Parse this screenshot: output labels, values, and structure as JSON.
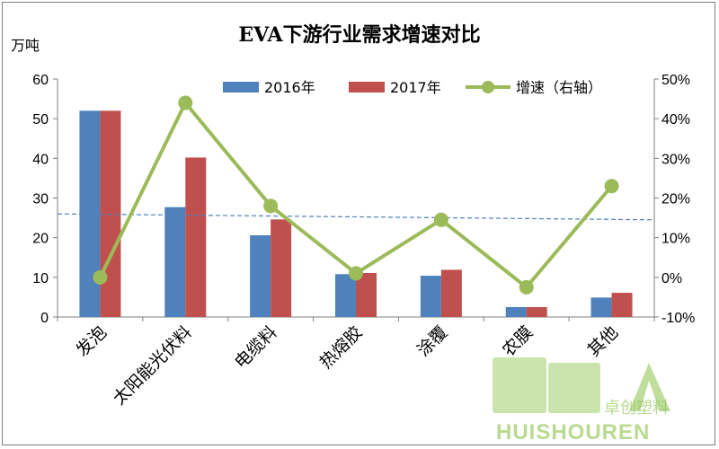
{
  "chart_data": {
    "type": "bar",
    "title": "EVA下游行业需求增速对比",
    "unit_label": "万吨",
    "categories": [
      "发泡",
      "太阳能光伏料",
      "电缆料",
      "热熔胶",
      "涂覆",
      "农膜",
      "其他"
    ],
    "series": [
      {
        "name": "2016年",
        "type": "bar",
        "axis": "left",
        "color": "#4f81bd",
        "values": [
          52,
          27.7,
          20.6,
          10.8,
          10.4,
          2.5,
          4.9
        ]
      },
      {
        "name": "2017年",
        "type": "bar",
        "axis": "left",
        "color": "#c0504d",
        "values": [
          52,
          40.2,
          24.6,
          11.1,
          11.9,
          2.5,
          6.1
        ]
      },
      {
        "name": "增速（右轴）",
        "type": "line",
        "axis": "right",
        "color": "#9bbb59",
        "values": [
          0.0,
          0.44,
          0.18,
          0.01,
          0.145,
          -0.025,
          0.23
        ]
      }
    ],
    "trendline": {
      "color": "#4f81bd",
      "dash": true,
      "start": 0.16,
      "end": 0.145
    },
    "y_left": {
      "min": 0,
      "max": 60,
      "ticks": [
        "0",
        "10",
        "20",
        "30",
        "40",
        "50",
        "60"
      ]
    },
    "y_right": {
      "min": -0.1,
      "max": 0.5,
      "ticks": [
        "-10%",
        "0%",
        "10%",
        "20%",
        "30%",
        "40%",
        "50%"
      ]
    },
    "legend": {
      "position": "top"
    }
  },
  "watermark": {
    "text": "HUISHOUREN",
    "chars": "回收",
    "brand": "卓创塑料"
  }
}
